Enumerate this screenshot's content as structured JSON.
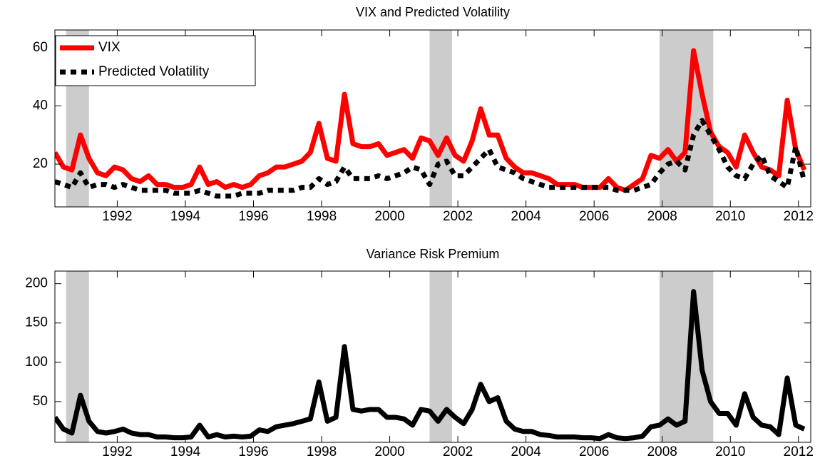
{
  "chart_data": [
    {
      "type": "line",
      "title": "VIX and Predicted Volatility",
      "x": [
        1990.17,
        1990.42,
        1990.67,
        1990.92,
        1991.17,
        1991.42,
        1991.67,
        1991.92,
        1992.17,
        1992.42,
        1992.67,
        1992.92,
        1993.17,
        1993.42,
        1993.67,
        1993.92,
        1994.17,
        1994.42,
        1994.67,
        1994.92,
        1995.17,
        1995.42,
        1995.67,
        1995.92,
        1996.17,
        1996.42,
        1996.67,
        1996.92,
        1997.17,
        1997.42,
        1997.67,
        1997.92,
        1998.17,
        1998.42,
        1998.67,
        1998.92,
        1999.17,
        1999.42,
        1999.67,
        1999.92,
        2000.17,
        2000.42,
        2000.67,
        2000.92,
        2001.17,
        2001.42,
        2001.67,
        2001.92,
        2002.17,
        2002.42,
        2002.67,
        2002.92,
        2003.17,
        2003.42,
        2003.67,
        2003.92,
        2004.17,
        2004.42,
        2004.67,
        2004.92,
        2005.17,
        2005.42,
        2005.67,
        2005.92,
        2006.17,
        2006.42,
        2006.67,
        2006.92,
        2007.17,
        2007.42,
        2007.67,
        2007.92,
        2008.17,
        2008.42,
        2008.67,
        2008.92,
        2009.17,
        2009.42,
        2009.67,
        2009.92,
        2010.17,
        2010.42,
        2010.67,
        2010.92,
        2011.17,
        2011.42,
        2011.67,
        2011.92,
        2012.17
      ],
      "series": [
        {
          "name": "VIX",
          "color": "#ff0000",
          "line_style": "solid",
          "values": [
            24,
            19,
            18,
            30,
            22,
            17,
            16,
            19,
            18,
            15,
            14,
            16,
            13,
            13,
            12,
            12,
            13,
            19,
            13,
            14,
            12,
            13,
            12,
            13,
            16,
            17,
            19,
            19,
            20,
            21,
            24,
            34,
            22,
            21,
            44,
            27,
            26,
            26,
            27,
            23,
            24,
            25,
            22,
            29,
            28,
            23,
            29,
            23,
            21,
            28,
            39,
            30,
            30,
            22,
            19,
            17,
            17,
            16,
            15,
            13,
            13,
            13,
            12,
            12,
            12,
            15,
            12,
            11,
            13,
            15,
            23,
            22,
            25,
            21,
            24,
            59,
            44,
            31,
            26,
            24,
            19,
            30,
            24,
            19,
            18,
            16,
            42,
            25,
            18
          ]
        },
        {
          "name": "Predicted Volatility",
          "color": "#000000",
          "line_style": "dashed",
          "values": [
            14,
            13,
            12,
            17,
            12,
            13,
            13,
            12,
            13,
            12,
            11,
            11,
            11,
            11,
            10,
            10,
            10,
            11,
            10,
            9,
            9,
            9,
            10,
            10,
            10,
            11,
            11,
            11,
            11,
            12,
            12,
            15,
            13,
            14,
            19,
            15,
            15,
            15,
            16,
            15,
            16,
            17,
            19,
            18,
            13,
            20,
            21,
            16,
            16,
            19,
            22,
            25,
            19,
            18,
            17,
            15,
            14,
            13,
            12,
            12,
            12,
            12,
            12,
            12,
            12,
            12,
            11,
            11,
            11,
            12,
            13,
            17,
            20,
            21,
            18,
            30,
            35,
            30,
            25,
            19,
            16,
            15,
            20,
            23,
            16,
            14,
            12,
            26,
            14
          ]
        }
      ],
      "xlim": [
        1990.17,
        2012.36
      ],
      "ylim": [
        5.3,
        66.1
      ],
      "xticks": [
        1992,
        1994,
        1996,
        1998,
        2000,
        2002,
        2004,
        2006,
        2008,
        2010,
        2012
      ],
      "yticks": [
        20,
        40,
        60
      ],
      "shaded_periods": [
        [
          1990.5,
          1991.17
        ],
        [
          2001.17,
          2001.83
        ],
        [
          2007.92,
          2009.5
        ]
      ],
      "shade_color": "#cccccc",
      "legend": "upper left"
    },
    {
      "type": "line",
      "title": "Variance Risk Premium",
      "x": [
        1990.17,
        1990.42,
        1990.67,
        1990.92,
        1991.17,
        1991.42,
        1991.67,
        1991.92,
        1992.17,
        1992.42,
        1992.67,
        1992.92,
        1993.17,
        1993.42,
        1993.67,
        1993.92,
        1994.17,
        1994.42,
        1994.67,
        1994.92,
        1995.17,
        1995.42,
        1995.67,
        1995.92,
        1996.17,
        1996.42,
        1996.67,
        1996.92,
        1997.17,
        1997.42,
        1997.67,
        1997.92,
        1998.17,
        1998.42,
        1998.67,
        1998.92,
        1999.17,
        1999.42,
        1999.67,
        1999.92,
        2000.17,
        2000.42,
        2000.67,
        2000.92,
        2001.17,
        2001.42,
        2001.67,
        2001.92,
        2002.17,
        2002.42,
        2002.67,
        2002.92,
        2003.17,
        2003.42,
        2003.67,
        2003.92,
        2004.17,
        2004.42,
        2004.67,
        2004.92,
        2005.17,
        2005.42,
        2005.67,
        2005.92,
        2006.17,
        2006.42,
        2006.67,
        2006.92,
        2007.17,
        2007.42,
        2007.67,
        2007.92,
        2008.17,
        2008.42,
        2008.67,
        2008.92,
        2009.17,
        2009.42,
        2009.67,
        2009.92,
        2010.17,
        2010.42,
        2010.67,
        2010.92,
        2011.17,
        2011.42,
        2011.67,
        2011.92,
        2012.17
      ],
      "color": "#000000",
      "values": [
        30,
        15,
        10,
        58,
        25,
        12,
        10,
        12,
        15,
        10,
        8,
        8,
        5,
        5,
        4,
        4,
        5,
        20,
        5,
        8,
        5,
        6,
        5,
        6,
        14,
        12,
        18,
        20,
        22,
        25,
        28,
        75,
        25,
        30,
        120,
        40,
        38,
        40,
        40,
        30,
        30,
        28,
        20,
        40,
        38,
        25,
        40,
        30,
        22,
        40,
        72,
        50,
        55,
        25,
        15,
        12,
        12,
        8,
        7,
        5,
        5,
        5,
        4,
        4,
        3,
        8,
        4,
        3,
        4,
        6,
        18,
        20,
        28,
        20,
        25,
        190,
        90,
        50,
        35,
        35,
        20,
        60,
        30,
        20,
        18,
        8,
        80,
        20,
        15
      ],
      "xlim": [
        1990.17,
        2012.36
      ],
      "ylim": [
        -1.8,
        216
      ],
      "xticks": [
        1992,
        1994,
        1996,
        1998,
        2000,
        2002,
        2004,
        2006,
        2008,
        2010,
        2012
      ],
      "yticks": [
        50,
        100,
        150,
        200
      ],
      "shaded_periods": [
        [
          1990.5,
          1991.17
        ],
        [
          2001.17,
          2001.83
        ],
        [
          2007.92,
          2009.5
        ]
      ],
      "shade_color": "#cccccc"
    }
  ]
}
